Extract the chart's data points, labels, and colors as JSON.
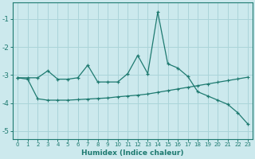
{
  "xlabel": "Humidex (Indice chaleur)",
  "background_color": "#cce9ed",
  "grid_color": "#aad4d9",
  "line_color": "#1e7a70",
  "x_data": [
    0,
    1,
    2,
    3,
    4,
    5,
    6,
    7,
    8,
    9,
    10,
    11,
    12,
    13,
    14,
    15,
    16,
    17,
    18,
    19,
    20,
    21,
    22,
    23
  ],
  "y1_data": [
    -3.1,
    -3.1,
    -3.1,
    -2.85,
    -3.15,
    -3.15,
    -3.1,
    -2.65,
    -3.25,
    -3.25,
    -3.25,
    -2.95,
    -2.3,
    -2.95,
    -0.75,
    -2.6,
    -2.75,
    -3.05,
    -3.6,
    -3.75,
    -3.9,
    -4.05,
    -4.35,
    -4.75
  ],
  "y2_data": [
    -3.1,
    -3.15,
    -3.85,
    -3.9,
    -3.9,
    -3.9,
    -3.88,
    -3.86,
    -3.84,
    -3.82,
    -3.78,
    -3.75,
    -3.72,
    -3.68,
    -3.62,
    -3.56,
    -3.5,
    -3.44,
    -3.38,
    -3.32,
    -3.26,
    -3.2,
    -3.14,
    -3.08
  ],
  "ylim": [
    -5.3,
    -0.4
  ],
  "yticks": [
    -5,
    -4,
    -3,
    -2,
    -1
  ],
  "xlim": [
    -0.5,
    23.5
  ]
}
